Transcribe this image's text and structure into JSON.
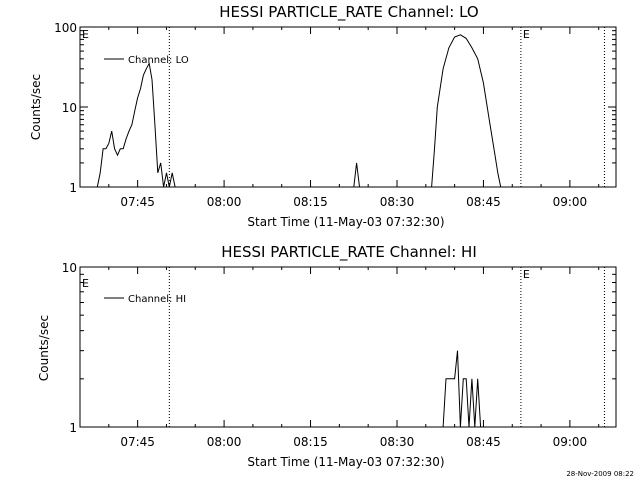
{
  "timestamp": "28-Nov-2009 08:22",
  "chart_data": [
    {
      "type": "line",
      "title": "HESSI PARTICLE_RATE Channel: LO",
      "xlabel": "Start Time (11-May-03 07:32:30)",
      "ylabel": "Counts/sec",
      "yscale": "log",
      "xlim": [
        "07:35",
        "09:08"
      ],
      "ylim": [
        1,
        100
      ],
      "xticks": [
        "07:45",
        "08:00",
        "08:15",
        "08:30",
        "08:45",
        "09:00"
      ],
      "yticks": [
        1,
        10,
        100
      ],
      "ytick_labels": [
        "1",
        "10",
        "100"
      ],
      "legend_position": "top-left",
      "series": [
        {
          "name": "Channel: LO",
          "x": [
            "07:38:00",
            "07:38:30",
            "07:39:00",
            "07:39:30",
            "07:40:00",
            "07:40:30",
            "07:41:00",
            "07:41:30",
            "07:42:00",
            "07:42:30",
            "07:43:00",
            "07:43:30",
            "07:44:00",
            "07:44:30",
            "07:45:00",
            "07:45:30",
            "07:46:00",
            "07:46:30",
            "07:47:00",
            "07:47:30",
            "07:48:00",
            "07:48:30",
            "07:49:00",
            "07:49:30",
            "07:50:00",
            "07:50:30",
            "07:51:00",
            "07:51:30",
            "07:52:00",
            "08:22:30",
            "08:23:00",
            "08:23:30",
            "08:36:00",
            "08:36:30",
            "08:37:00",
            "08:38:00",
            "08:39:00",
            "08:40:00",
            "08:41:00",
            "08:42:00",
            "08:43:00",
            "08:44:00",
            "08:45:00",
            "08:46:00",
            "08:47:00",
            "08:47:30",
            "08:48:00"
          ],
          "y": [
            1,
            1.5,
            3,
            3,
            3.5,
            5,
            3,
            2.5,
            3,
            3,
            4,
            5,
            6,
            9,
            13,
            17,
            25,
            30,
            35,
            22,
            6,
            1.5,
            2,
            1,
            1.5,
            1,
            1.5,
            1,
            1,
            1,
            2,
            1,
            1,
            3,
            10,
            30,
            55,
            75,
            80,
            72,
            55,
            40,
            20,
            7,
            2.5,
            1.5,
            1
          ],
          "markers": [
            {
              "x": "07:50:30",
              "label": ""
            },
            {
              "x": "08:51:30",
              "label": "E"
            },
            {
              "x": "09:06:00",
              "label": ""
            }
          ]
        }
      ],
      "corner_label": "E"
    },
    {
      "type": "line",
      "title": "HESSI PARTICLE_RATE Channel: HI",
      "xlabel": "Start Time (11-May-03 07:32:30)",
      "ylabel": "Counts/sec",
      "yscale": "log",
      "xlim": [
        "07:35",
        "09:08"
      ],
      "ylim": [
        1,
        10
      ],
      "xticks": [
        "07:45",
        "08:00",
        "08:15",
        "08:30",
        "08:45",
        "09:00"
      ],
      "yticks": [
        1,
        10
      ],
      "ytick_labels": [
        "1",
        "10"
      ],
      "legend_position": "top-left",
      "series": [
        {
          "name": "Channel: HI",
          "x": [
            "08:38:00",
            "08:38:30",
            "08:40:00",
            "08:40:30",
            "08:41:00",
            "08:41:30",
            "08:42:00",
            "08:42:30",
            "08:43:00",
            "08:43:30",
            "08:44:00",
            "08:44:30",
            "08:45:00"
          ],
          "y": [
            1,
            2,
            2,
            3,
            1,
            2,
            2,
            1,
            2,
            1,
            2,
            1,
            1
          ],
          "markers": [
            {
              "x": "07:50:30",
              "label": ""
            },
            {
              "x": "08:51:30",
              "label": "E"
            },
            {
              "x": "09:06:00",
              "label": ""
            }
          ]
        }
      ],
      "corner_label": "E"
    }
  ]
}
